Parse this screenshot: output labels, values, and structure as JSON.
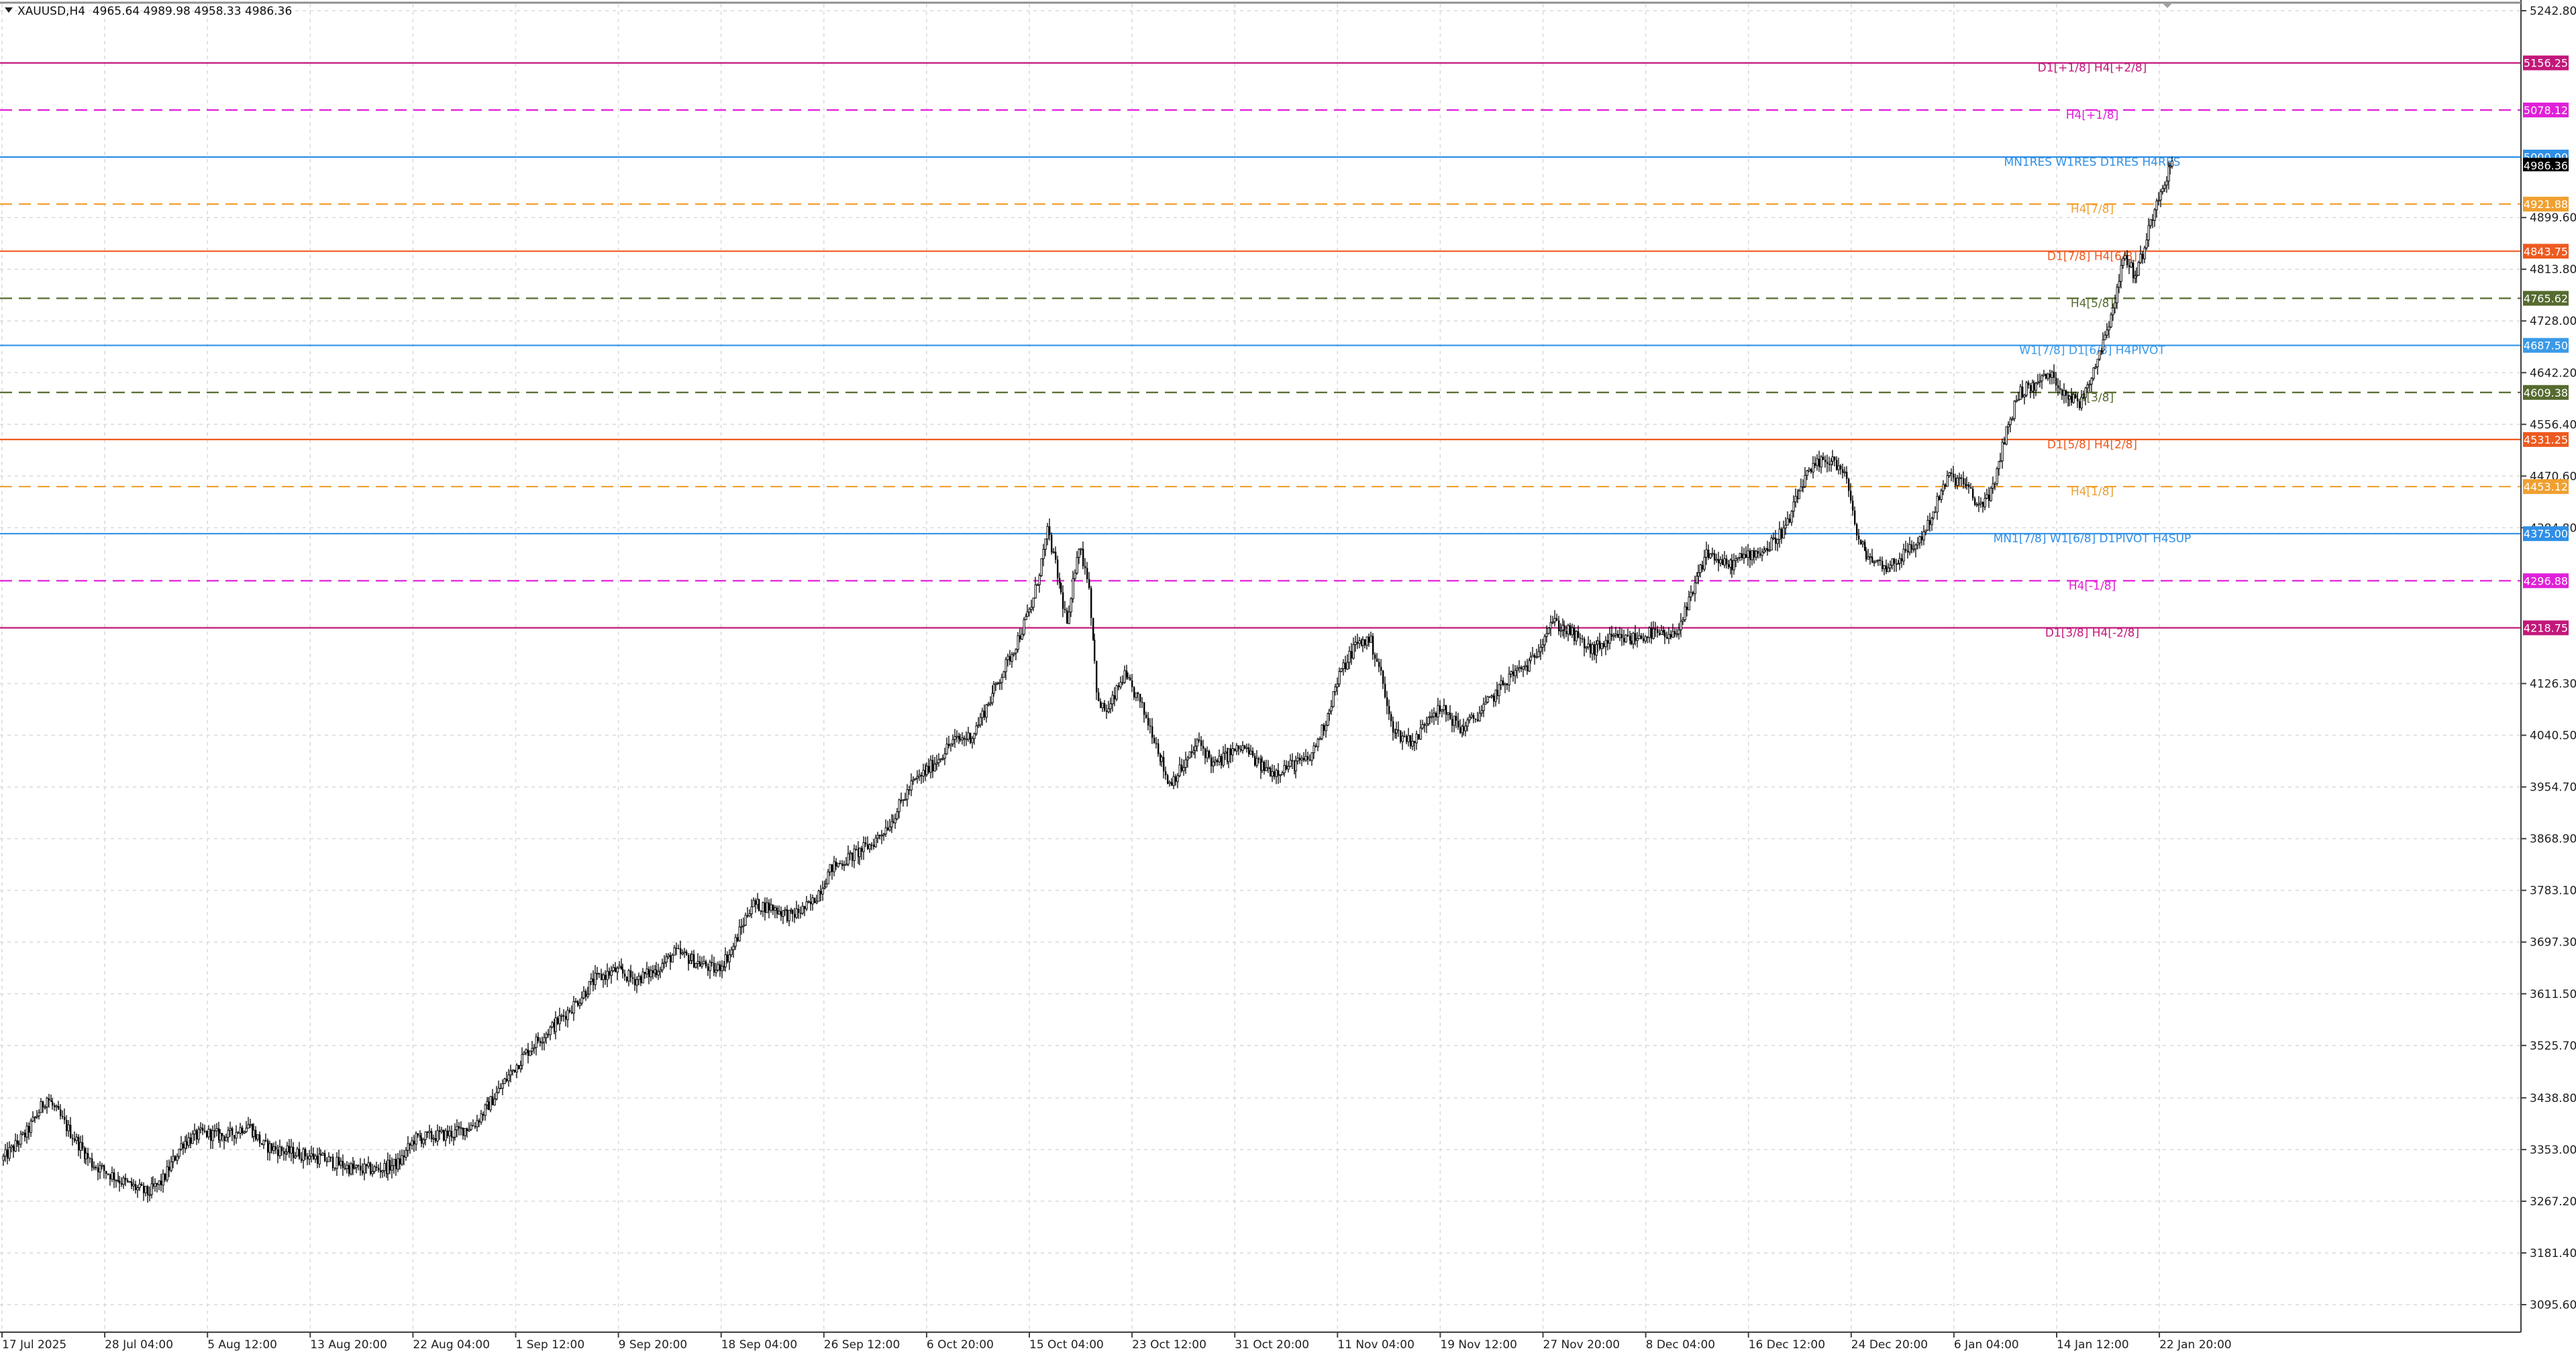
{
  "header": {
    "symbol_line": "XAUUSD,H4  4965.64 4989.98 4958.33 4986.36"
  },
  "colors": {
    "background": "#ffffff",
    "grid": "#d6d6d6",
    "axis": "#404040",
    "candle": "#000000"
  },
  "chart_data": {
    "type": "candlestick",
    "title": "XAUUSD,H4",
    "ohlc_last": {
      "open": 4965.64,
      "high": 4989.98,
      "low": 4958.33,
      "close": 4986.36
    },
    "ylim": [
      3052.0,
      5262.0
    ],
    "grid": true,
    "price_ticks": [
      5242.8,
      4899.6,
      4813.8,
      4728.0,
      4642.2,
      4556.4,
      4470.6,
      4384.8,
      4126.3,
      4040.5,
      3954.7,
      3868.9,
      3783.1,
      3697.3,
      3611.5,
      3525.7,
      3438.8,
      3353.0,
      3267.2,
      3181.4,
      3095.6
    ],
    "price_tick_labels": [
      "5242.80",
      "4899.60",
      "4813.80",
      "4728.00",
      "4642.20",
      "4556.40",
      "4470.60",
      "4384.80",
      "4126.30",
      "4040.50",
      "3954.70",
      "3868.90",
      "3783.10",
      "3697.30",
      "3611.50",
      "3525.70",
      "3438.80",
      "3353.00",
      "3267.20",
      "3181.40",
      "3095.60"
    ],
    "time_labels": [
      "17 Jul 2025",
      "28 Jul 04:00",
      "5 Aug 12:00",
      "13 Aug 20:00",
      "22 Aug 04:00",
      "1 Sep 12:00",
      "9 Sep 20:00",
      "18 Sep 04:00",
      "26 Sep 12:00",
      "6 Oct 20:00",
      "15 Oct 04:00",
      "23 Oct 12:00",
      "31 Oct 20:00",
      "11 Nov 04:00",
      "19 Nov 12:00",
      "27 Nov 20:00",
      "8 Dec 04:00",
      "16 Dec 12:00",
      "24 Dec 20:00",
      "6 Jan 04:00",
      "14 Jan 12:00",
      "22 Jan 20:00"
    ],
    "current_price": {
      "label": "4986.36",
      "value": 4986.36
    },
    "levels": [
      {
        "value": 5156.25,
        "price_label": "5156.25",
        "text": "D1[+1/8] H4[+2/8]",
        "color": "#c2187a",
        "dash": "solid"
      },
      {
        "value": 5078.12,
        "price_label": "5078.12",
        "text": "H4[+1/8]",
        "color": "#e020d8",
        "dash": "dash"
      },
      {
        "value": 5000.0,
        "price_label": "5000.00",
        "text": "MN1RES W1RES D1RES H4RES",
        "color": "#2f8fe6",
        "dash": "solid"
      },
      {
        "value": 4921.88,
        "price_label": "4921.88",
        "text": "H4[7/8]",
        "color": "#f0a030",
        "dash": "dash"
      },
      {
        "value": 4843.75,
        "price_label": "4843.75",
        "text": "D1[7/8] H4[6/8]",
        "color": "#ee5a20",
        "dash": "solid"
      },
      {
        "value": 4765.62,
        "price_label": "4765.62",
        "text": "H4[5/8]",
        "color": "#556b2f",
        "dash": "dash"
      },
      {
        "value": 4687.5,
        "price_label": "4687.50",
        "text": "W1[7/8] D1[6/8] H4PIVOT",
        "color": "#3a9ae8",
        "dash": "solid"
      },
      {
        "value": 4609.38,
        "price_label": "4609.38",
        "text": "H4[3/8]",
        "color": "#556b2f",
        "dash": "dash"
      },
      {
        "value": 4531.25,
        "price_label": "4531.25",
        "text": "D1[5/8] H4[2/8]",
        "color": "#ee5a20",
        "dash": "solid"
      },
      {
        "value": 4453.12,
        "price_label": "4453.12",
        "text": "H4[1/8]",
        "color": "#f0a030",
        "dash": "dash"
      },
      {
        "value": 4375.0,
        "price_label": "4375.00",
        "text": "MN1[7/8] W1[6/8] D1PIVOT H4SUP",
        "color": "#2f8fe6",
        "dash": "solid"
      },
      {
        "value": 4296.88,
        "price_label": "4296.88",
        "text": "H4[-1/8]",
        "color": "#e020d8",
        "dash": "dash"
      },
      {
        "value": 4218.75,
        "price_label": "4218.75",
        "text": "D1[3/8] H4[-2/8]",
        "color": "#c2187a",
        "dash": "solid"
      }
    ],
    "price_path": [
      [
        0.0,
        3335
      ],
      [
        0.01,
        3380
      ],
      [
        0.018,
        3440
      ],
      [
        0.026,
        3390
      ],
      [
        0.036,
        3330
      ],
      [
        0.048,
        3300
      ],
      [
        0.058,
        3280
      ],
      [
        0.064,
        3300
      ],
      [
        0.072,
        3365
      ],
      [
        0.08,
        3380
      ],
      [
        0.09,
        3375
      ],
      [
        0.098,
        3395
      ],
      [
        0.104,
        3360
      ],
      [
        0.112,
        3350
      ],
      [
        0.12,
        3345
      ],
      [
        0.13,
        3335
      ],
      [
        0.14,
        3320
      ],
      [
        0.15,
        3320
      ],
      [
        0.158,
        3330
      ],
      [
        0.164,
        3370
      ],
      [
        0.172,
        3375
      ],
      [
        0.18,
        3380
      ],
      [
        0.188,
        3395
      ],
      [
        0.196,
        3440
      ],
      [
        0.204,
        3490
      ],
      [
        0.212,
        3530
      ],
      [
        0.22,
        3560
      ],
      [
        0.228,
        3595
      ],
      [
        0.236,
        3635
      ],
      [
        0.244,
        3650
      ],
      [
        0.252,
        3635
      ],
      [
        0.26,
        3650
      ],
      [
        0.268,
        3680
      ],
      [
        0.276,
        3665
      ],
      [
        0.284,
        3650
      ],
      [
        0.29,
        3680
      ],
      [
        0.298,
        3760
      ],
      [
        0.306,
        3755
      ],
      [
        0.314,
        3740
      ],
      [
        0.322,
        3760
      ],
      [
        0.33,
        3820
      ],
      [
        0.338,
        3840
      ],
      [
        0.346,
        3860
      ],
      [
        0.354,
        3900
      ],
      [
        0.362,
        3960
      ],
      [
        0.37,
        3990
      ],
      [
        0.378,
        4030
      ],
      [
        0.386,
        4040
      ],
      [
        0.394,
        4110
      ],
      [
        0.402,
        4180
      ],
      [
        0.41,
        4260
      ],
      [
        0.416,
        4380
      ],
      [
        0.42,
        4300
      ],
      [
        0.424,
        4220
      ],
      [
        0.428,
        4360
      ],
      [
        0.432,
        4300
      ],
      [
        0.436,
        4090
      ],
      [
        0.44,
        4080
      ],
      [
        0.446,
        4140
      ],
      [
        0.452,
        4100
      ],
      [
        0.458,
        4040
      ],
      [
        0.464,
        3960
      ],
      [
        0.47,
        3990
      ],
      [
        0.476,
        4030
      ],
      [
        0.482,
        3990
      ],
      [
        0.488,
        4010
      ],
      [
        0.494,
        4020
      ],
      [
        0.5,
        3990
      ],
      [
        0.506,
        3980
      ],
      [
        0.512,
        3990
      ],
      [
        0.52,
        4000
      ],
      [
        0.526,
        4060
      ],
      [
        0.532,
        4140
      ],
      [
        0.538,
        4190
      ],
      [
        0.544,
        4200
      ],
      [
        0.548,
        4150
      ],
      [
        0.552,
        4060
      ],
      [
        0.556,
        4040
      ],
      [
        0.562,
        4030
      ],
      [
        0.568,
        4080
      ],
      [
        0.574,
        4080
      ],
      [
        0.58,
        4050
      ],
      [
        0.586,
        4070
      ],
      [
        0.592,
        4100
      ],
      [
        0.6,
        4140
      ],
      [
        0.608,
        4160
      ],
      [
        0.616,
        4230
      ],
      [
        0.624,
        4210
      ],
      [
        0.632,
        4180
      ],
      [
        0.64,
        4200
      ],
      [
        0.648,
        4200
      ],
      [
        0.656,
        4210
      ],
      [
        0.664,
        4200
      ],
      [
        0.67,
        4250
      ],
      [
        0.678,
        4345
      ],
      [
        0.686,
        4320
      ],
      [
        0.694,
        4340
      ],
      [
        0.702,
        4350
      ],
      [
        0.71,
        4390
      ],
      [
        0.716,
        4460
      ],
      [
        0.722,
        4490
      ],
      [
        0.728,
        4500
      ],
      [
        0.734,
        4460
      ],
      [
        0.738,
        4360
      ],
      [
        0.744,
        4330
      ],
      [
        0.75,
        4320
      ],
      [
        0.756,
        4340
      ],
      [
        0.762,
        4360
      ],
      [
        0.768,
        4410
      ],
      [
        0.774,
        4470
      ],
      [
        0.78,
        4460
      ],
      [
        0.786,
        4420
      ],
      [
        0.792,
        4450
      ],
      [
        0.796,
        4530
      ],
      [
        0.802,
        4610
      ],
      [
        0.808,
        4620
      ],
      [
        0.814,
        4640
      ],
      [
        0.82,
        4610
      ],
      [
        0.826,
        4590
      ],
      [
        0.83,
        4630
      ],
      [
        0.836,
        4700
      ],
      [
        0.84,
        4760
      ],
      [
        0.844,
        4840
      ],
      [
        0.848,
        4800
      ],
      [
        0.852,
        4850
      ],
      [
        0.856,
        4920
      ],
      [
        0.86,
        4965
      ],
      [
        0.863,
        4986.36
      ]
    ]
  }
}
